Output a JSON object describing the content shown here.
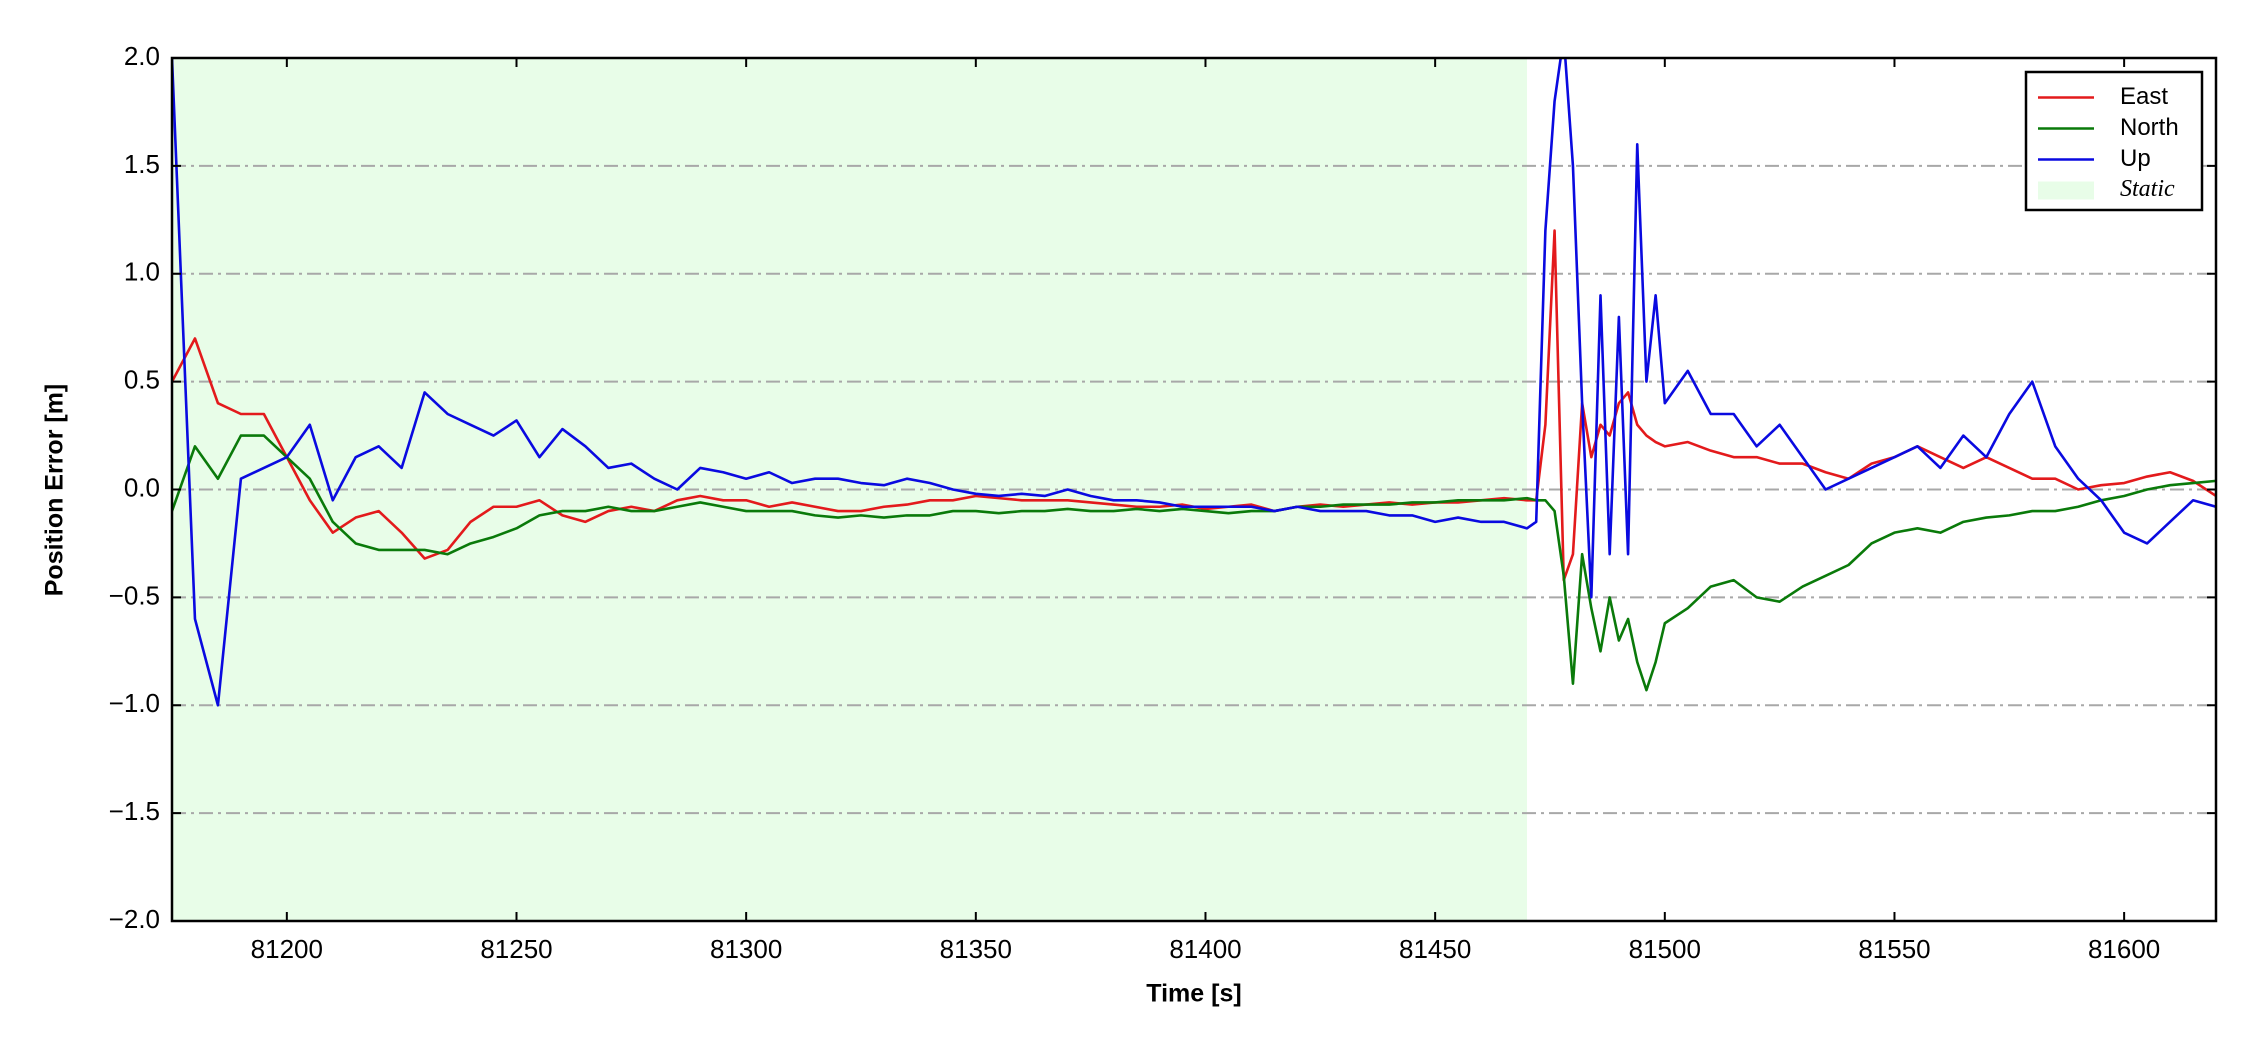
{
  "chart_data": {
    "type": "line",
    "xlabel": "Time [s]",
    "ylabel": "Position Error [m]",
    "xlim": [
      81175,
      81620
    ],
    "ylim": [
      -2.0,
      2.0
    ],
    "xticks": [
      81200,
      81250,
      81300,
      81350,
      81400,
      81450,
      81500,
      81550,
      81600
    ],
    "yticks": [
      {
        "value": -2.0,
        "label": "−2.0"
      },
      {
        "value": -1.5,
        "label": "−1.5"
      },
      {
        "value": -1.0,
        "label": "−1.0"
      },
      {
        "value": -0.5,
        "label": "−0.5"
      },
      {
        "value": 0.0,
        "label": "0.0"
      },
      {
        "value": 0.5,
        "label": "0.5"
      },
      {
        "value": 1.0,
        "label": "1.0"
      },
      {
        "value": 1.5,
        "label": "1.5"
      },
      {
        "value": 2.0,
        "label": "2.0"
      }
    ],
    "grid": true,
    "legend_position": "upper right",
    "shaded_region": {
      "name": "Static",
      "color": "#e8fde8",
      "x": [
        81175,
        81470
      ]
    },
    "x": [
      81175,
      81180,
      81185,
      81190,
      81195,
      81200,
      81205,
      81210,
      81215,
      81220,
      81225,
      81230,
      81235,
      81240,
      81245,
      81250,
      81255,
      81260,
      81265,
      81270,
      81275,
      81280,
      81285,
      81290,
      81295,
      81300,
      81305,
      81310,
      81315,
      81320,
      81325,
      81330,
      81335,
      81340,
      81345,
      81350,
      81355,
      81360,
      81365,
      81370,
      81375,
      81380,
      81385,
      81390,
      81395,
      81400,
      81405,
      81410,
      81415,
      81420,
      81425,
      81430,
      81435,
      81440,
      81445,
      81450,
      81455,
      81460,
      81465,
      81470,
      81472,
      81474,
      81476,
      81478,
      81480,
      81482,
      81484,
      81486,
      81488,
      81490,
      81492,
      81494,
      81496,
      81498,
      81500,
      81505,
      81510,
      81515,
      81520,
      81525,
      81530,
      81535,
      81540,
      81545,
      81550,
      81555,
      81560,
      81565,
      81570,
      81575,
      81580,
      81585,
      81590,
      81595,
      81600,
      81605,
      81610,
      81615,
      81620
    ],
    "series": [
      {
        "name": "East",
        "color": "#e31a1c",
        "values": [
          0.5,
          0.7,
          0.4,
          0.35,
          0.35,
          0.15,
          -0.05,
          -0.2,
          -0.13,
          -0.1,
          -0.2,
          -0.32,
          -0.28,
          -0.15,
          -0.08,
          -0.08,
          -0.05,
          -0.12,
          -0.15,
          -0.1,
          -0.08,
          -0.1,
          -0.05,
          -0.03,
          -0.05,
          -0.05,
          -0.08,
          -0.06,
          -0.08,
          -0.1,
          -0.1,
          -0.08,
          -0.07,
          -0.05,
          -0.05,
          -0.03,
          -0.04,
          -0.05,
          -0.05,
          -0.05,
          -0.06,
          -0.07,
          -0.08,
          -0.08,
          -0.07,
          -0.09,
          -0.08,
          -0.07,
          -0.1,
          -0.08,
          -0.07,
          -0.08,
          -0.07,
          -0.06,
          -0.07,
          -0.06,
          -0.06,
          -0.05,
          -0.04,
          -0.05,
          -0.05,
          0.3,
          1.2,
          -0.42,
          -0.3,
          0.4,
          0.15,
          0.3,
          0.25,
          0.4,
          0.45,
          0.3,
          0.25,
          0.22,
          0.2,
          0.22,
          0.18,
          0.15,
          0.15,
          0.12,
          0.12,
          0.08,
          0.05,
          0.12,
          0.15,
          0.2,
          0.15,
          0.1,
          0.15,
          0.1,
          0.05,
          0.05,
          0.0,
          0.02,
          0.03,
          0.06,
          0.08,
          0.04,
          -0.03
        ]
      },
      {
        "name": "North",
        "color": "#0a7a0a",
        "values": [
          -0.1,
          0.2,
          0.05,
          0.25,
          0.25,
          0.15,
          0.05,
          -0.15,
          -0.25,
          -0.28,
          -0.28,
          -0.28,
          -0.3,
          -0.25,
          -0.22,
          -0.18,
          -0.12,
          -0.1,
          -0.1,
          -0.08,
          -0.1,
          -0.1,
          -0.08,
          -0.06,
          -0.08,
          -0.1,
          -0.1,
          -0.1,
          -0.12,
          -0.13,
          -0.12,
          -0.13,
          -0.12,
          -0.12,
          -0.1,
          -0.1,
          -0.11,
          -0.1,
          -0.1,
          -0.09,
          -0.1,
          -0.1,
          -0.09,
          -0.1,
          -0.09,
          -0.1,
          -0.11,
          -0.1,
          -0.1,
          -0.08,
          -0.08,
          -0.07,
          -0.07,
          -0.07,
          -0.06,
          -0.06,
          -0.05,
          -0.05,
          -0.05,
          -0.04,
          -0.05,
          -0.05,
          -0.1,
          -0.4,
          -0.9,
          -0.3,
          -0.55,
          -0.75,
          -0.5,
          -0.7,
          -0.6,
          -0.8,
          -0.93,
          -0.8,
          -0.62,
          -0.55,
          -0.45,
          -0.42,
          -0.5,
          -0.52,
          -0.45,
          -0.4,
          -0.35,
          -0.25,
          -0.2,
          -0.18,
          -0.2,
          -0.15,
          -0.13,
          -0.12,
          -0.1,
          -0.1,
          -0.08,
          -0.05,
          -0.03,
          0.0,
          0.02,
          0.03,
          0.04
        ]
      },
      {
        "name": "Up",
        "color": "#0a0ae0",
        "values": [
          2.0,
          -0.6,
          -1.0,
          0.05,
          0.1,
          0.15,
          0.3,
          -0.05,
          0.15,
          0.2,
          0.1,
          0.45,
          0.35,
          0.3,
          0.25,
          0.32,
          0.15,
          0.28,
          0.2,
          0.1,
          0.12,
          0.05,
          0.0,
          0.1,
          0.08,
          0.05,
          0.08,
          0.03,
          0.05,
          0.05,
          0.03,
          0.02,
          0.05,
          0.03,
          0.0,
          -0.02,
          -0.03,
          -0.02,
          -0.03,
          0.0,
          -0.03,
          -0.05,
          -0.05,
          -0.06,
          -0.08,
          -0.08,
          -0.08,
          -0.08,
          -0.1,
          -0.08,
          -0.1,
          -0.1,
          -0.1,
          -0.12,
          -0.12,
          -0.15,
          -0.13,
          -0.15,
          -0.15,
          -0.18,
          -0.15,
          1.2,
          1.8,
          2.1,
          1.5,
          0.4,
          -0.5,
          0.9,
          -0.3,
          0.8,
          -0.3,
          1.6,
          0.5,
          0.9,
          0.4,
          0.55,
          0.35,
          0.35,
          0.2,
          0.3,
          0.15,
          0.0,
          0.05,
          0.1,
          0.15,
          0.2,
          0.1,
          0.25,
          0.15,
          0.35,
          0.5,
          0.2,
          0.05,
          -0.05,
          -0.2,
          -0.25,
          -0.15,
          -0.05,
          -0.08
        ]
      }
    ]
  }
}
